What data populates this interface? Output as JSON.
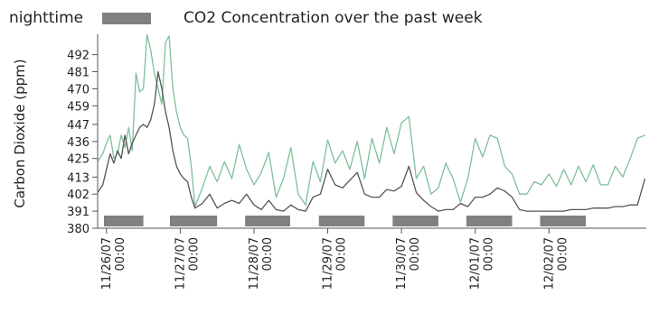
{
  "chart_data": {
    "type": "line",
    "title": "CO2 Concentration over the past week",
    "ylabel": "Carbon Dioxide (ppm)",
    "xlabel": "",
    "ylim": [
      380,
      504
    ],
    "yticks": [
      380,
      391,
      402,
      413,
      425,
      436,
      447,
      459,
      470,
      481,
      492
    ],
    "xlim": [
      -0.12,
      7.32
    ],
    "xticks": [
      {
        "x": 0,
        "label": "11/26/07 00:00"
      },
      {
        "x": 1,
        "label": "11/27/07 00:00"
      },
      {
        "x": 2,
        "label": "11/28/07 00:00"
      },
      {
        "x": 3,
        "label": "11/29/07 00:00"
      },
      {
        "x": 4,
        "label": "11/30/07 00:00"
      },
      {
        "x": 5,
        "label": "12/01/07 00:00"
      },
      {
        "x": 6,
        "label": "12/02/07 00:00"
      }
    ],
    "legend": {
      "label": "nighttime",
      "placement": "top-left"
    },
    "nighttime_periods": [
      [
        -0.12,
        0.5
      ],
      [
        0.86,
        1.5
      ],
      [
        1.88,
        2.49
      ],
      [
        2.88,
        3.5
      ],
      [
        3.88,
        4.5
      ],
      [
        4.88,
        5.5
      ],
      [
        5.88,
        6.5
      ]
    ],
    "series": [
      {
        "color": "#7fbf9a",
        "x": [
          -0.12,
          -0.05,
          0.0,
          0.05,
          0.1,
          0.15,
          0.2,
          0.25,
          0.3,
          0.35,
          0.4,
          0.45,
          0.5,
          0.55,
          0.6,
          0.65,
          0.7,
          0.75,
          0.8,
          0.85,
          0.9,
          0.95,
          1.0,
          1.05,
          1.1,
          1.15,
          1.2,
          1.3,
          1.4,
          1.5,
          1.6,
          1.7,
          1.8,
          1.9,
          2.0,
          2.1,
          2.2,
          2.3,
          2.4,
          2.5,
          2.6,
          2.7,
          2.8,
          2.9,
          3.0,
          3.1,
          3.2,
          3.3,
          3.4,
          3.5,
          3.6,
          3.7,
          3.8,
          3.9,
          4.0,
          4.1,
          4.2,
          4.3,
          4.4,
          4.5,
          4.6,
          4.7,
          4.8,
          4.9,
          5.0,
          5.1,
          5.2,
          5.3,
          5.4,
          5.5,
          5.6,
          5.7,
          5.8,
          5.9,
          6.0,
          6.1,
          6.2,
          6.3,
          6.4,
          6.5,
          6.6,
          6.7,
          6.8,
          6.9,
          7.0,
          7.1,
          7.2,
          7.3
        ],
        "y": [
          423,
          428,
          435,
          440,
          425,
          428,
          440,
          432,
          445,
          430,
          480,
          468,
          470,
          505,
          495,
          480,
          470,
          460,
          500,
          504,
          470,
          455,
          445,
          440,
          438,
          420,
          394,
          406,
          420,
          410,
          423,
          412,
          434,
          418,
          408,
          416,
          429,
          400,
          412,
          432,
          402,
          395,
          423,
          410,
          437,
          422,
          430,
          418,
          436,
          412,
          438,
          422,
          445,
          428,
          448,
          452,
          412,
          420,
          402,
          406,
          422,
          412,
          397,
          412,
          438,
          426,
          440,
          438,
          420,
          415,
          402,
          402,
          410,
          408,
          415,
          407,
          418,
          408,
          420,
          410,
          421,
          408,
          408,
          420,
          413,
          425,
          438,
          440
        ]
      },
      {
        "color": "#555555",
        "x": [
          -0.12,
          -0.05,
          0.0,
          0.05,
          0.1,
          0.15,
          0.2,
          0.25,
          0.3,
          0.35,
          0.4,
          0.45,
          0.5,
          0.55,
          0.6,
          0.65,
          0.7,
          0.75,
          0.8,
          0.85,
          0.9,
          0.95,
          1.0,
          1.05,
          1.1,
          1.15,
          1.2,
          1.3,
          1.4,
          1.5,
          1.6,
          1.7,
          1.8,
          1.9,
          2.0,
          2.1,
          2.2,
          2.3,
          2.4,
          2.5,
          2.6,
          2.7,
          2.8,
          2.9,
          3.0,
          3.1,
          3.2,
          3.3,
          3.4,
          3.5,
          3.6,
          3.7,
          3.8,
          3.9,
          4.0,
          4.1,
          4.2,
          4.3,
          4.4,
          4.5,
          4.6,
          4.7,
          4.8,
          4.9,
          5.0,
          5.1,
          5.2,
          5.3,
          5.4,
          5.5,
          5.6,
          5.7,
          5.8,
          5.9,
          6.0,
          6.1,
          6.2,
          6.3,
          6.4,
          6.5,
          6.6,
          6.7,
          6.8,
          6.9,
          7.0,
          7.1,
          7.2,
          7.3
        ],
        "y": [
          403,
          408,
          418,
          428,
          422,
          430,
          425,
          440,
          428,
          435,
          440,
          445,
          447,
          445,
          450,
          460,
          481,
          470,
          455,
          445,
          430,
          420,
          415,
          412,
          410,
          400,
          393,
          396,
          402,
          393,
          396,
          398,
          396,
          402,
          395,
          392,
          398,
          392,
          391,
          395,
          392,
          391,
          400,
          402,
          418,
          408,
          406,
          411,
          416,
          402,
          400,
          400,
          405,
          404,
          407,
          420,
          403,
          398,
          394,
          391,
          392,
          392,
          396,
          394,
          400,
          400,
          402,
          406,
          404,
          400,
          392,
          391,
          391,
          391,
          391,
          391,
          391,
          392,
          392,
          392,
          393,
          393,
          393,
          394,
          394,
          395,
          395,
          412
        ]
      }
    ]
  },
  "colors": {
    "axis": "#555555",
    "nighttime_bar": "#808080",
    "green_line": "#7fbf9a",
    "dark_line": "#555555"
  }
}
